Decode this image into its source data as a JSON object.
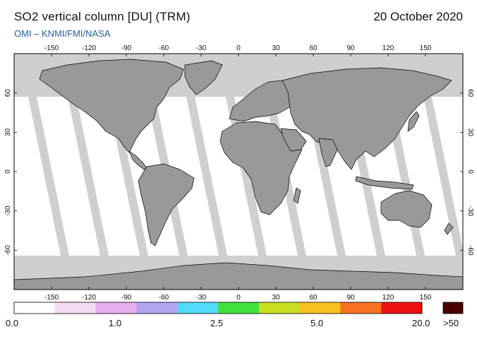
{
  "header": {
    "title": "SO2 vertical column [DU] (TRM)",
    "date": "20 October 2020",
    "source": "OMI  –  KNMI/FMI/NASA"
  },
  "map": {
    "projection": "equirectangular",
    "lon_range": [
      -180,
      180
    ],
    "lat_range": [
      -90,
      90
    ],
    "lon_ticks": [
      "-150",
      "-120",
      "-90",
      "-60",
      "-30",
      "0",
      "30",
      "60",
      "90",
      "120",
      "150"
    ],
    "lat_ticks": [
      "60",
      "30",
      "0",
      "-30",
      "-60"
    ],
    "land_color": "#999999",
    "no_data_color": "#cfcfcf",
    "coverage_color": "#ffffff",
    "orbit_swaths": "diagonal gaps between orbit swaths (no data)"
  },
  "colorbar": {
    "colors": [
      "#ffffff",
      "#f4dcf4",
      "#e6aef0",
      "#b4a4f0",
      "#50dcf8",
      "#40e040",
      "#c8e020",
      "#f8c020",
      "#f87020",
      "#f01010"
    ],
    "overflow_color": "#4a0000",
    "labels": [
      "0.0",
      "1.0",
      "2.5",
      "5.0",
      "20.0"
    ],
    "overflow_label": ">50"
  }
}
